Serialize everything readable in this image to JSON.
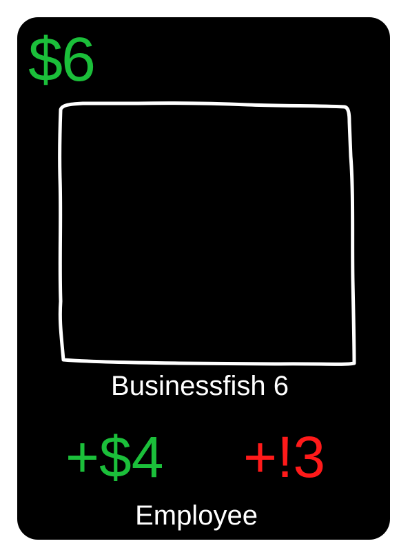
{
  "card": {
    "cost": "$6",
    "name": "Businessfish 6",
    "money_bonus": "+$4",
    "threat_bonus": "+!3",
    "type": "Employee",
    "colors": {
      "background": "#000000",
      "money": "#1bbf3a",
      "threat": "#ff1a1a",
      "text": "#ffffff",
      "frame": "#ffffff"
    },
    "art_icon": "hand-drawn-frame-icon"
  }
}
